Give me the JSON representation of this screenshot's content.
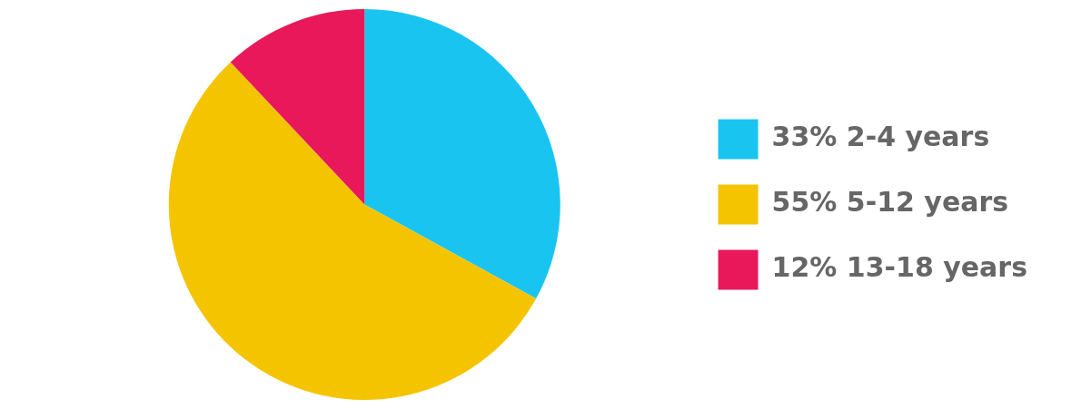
{
  "chart_data": {
    "type": "pie",
    "categories": [
      "33% 2-4 years",
      "55% 5-12 years",
      "12% 13-18 years"
    ],
    "values": [
      33,
      55,
      12
    ],
    "colors": [
      "#19C5F0",
      "#F5C400",
      "#E8185A"
    ],
    "legend": "right"
  }
}
